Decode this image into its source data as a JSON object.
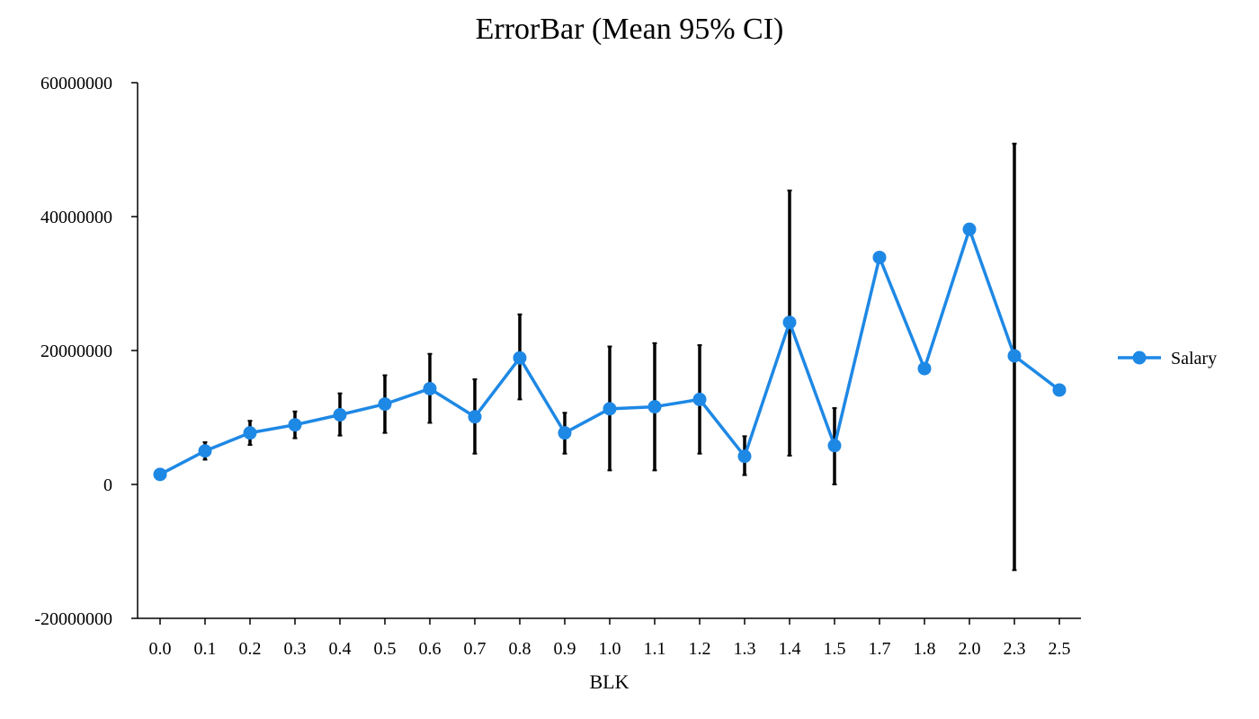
{
  "chart_data": {
    "type": "line",
    "title": "ErrorBar (Mean 95% CI)",
    "xlabel": "BLK",
    "ylabel": "",
    "ylim": [
      -20000000,
      60000000
    ],
    "y_ticks": [
      "-20000000",
      "0",
      "20000000",
      "40000000",
      "60000000"
    ],
    "y_tick_values": [
      -20000000,
      0,
      20000000,
      40000000,
      60000000
    ],
    "categories": [
      "0.0",
      "0.1",
      "0.2",
      "0.3",
      "0.4",
      "0.5",
      "0.6",
      "0.7",
      "0.8",
      "0.9",
      "1.0",
      "1.1",
      "1.2",
      "1.3",
      "1.4",
      "1.5",
      "1.7",
      "1.8",
      "2.0",
      "2.3",
      "2.5"
    ],
    "series": [
      {
        "name": "Salary",
        "color": "#1e88e5",
        "values": [
          1500000,
          5000000,
          7700000,
          8900000,
          10400000,
          12000000,
          14300000,
          10100000,
          18900000,
          7700000,
          11300000,
          11600000,
          12700000,
          4200000,
          24200000,
          5800000,
          33900000,
          17300000,
          38100000,
          19200000,
          14100000
        ],
        "error_low": [
          900000,
          3700000,
          5900000,
          6900000,
          7300000,
          7700000,
          9200000,
          4600000,
          12700000,
          4600000,
          2100000,
          2100000,
          4600000,
          1400000,
          4300000,
          0,
          null,
          null,
          null,
          -12800000,
          null
        ],
        "error_high": [
          2100000,
          6300000,
          9500000,
          10900000,
          13600000,
          16300000,
          19500000,
          15700000,
          25400000,
          10700000,
          20600000,
          21100000,
          20800000,
          7200000,
          43900000,
          11400000,
          null,
          null,
          null,
          50900000,
          null
        ]
      }
    ],
    "error_bar_color": "#000000",
    "legend_position": "right",
    "grid": false
  }
}
